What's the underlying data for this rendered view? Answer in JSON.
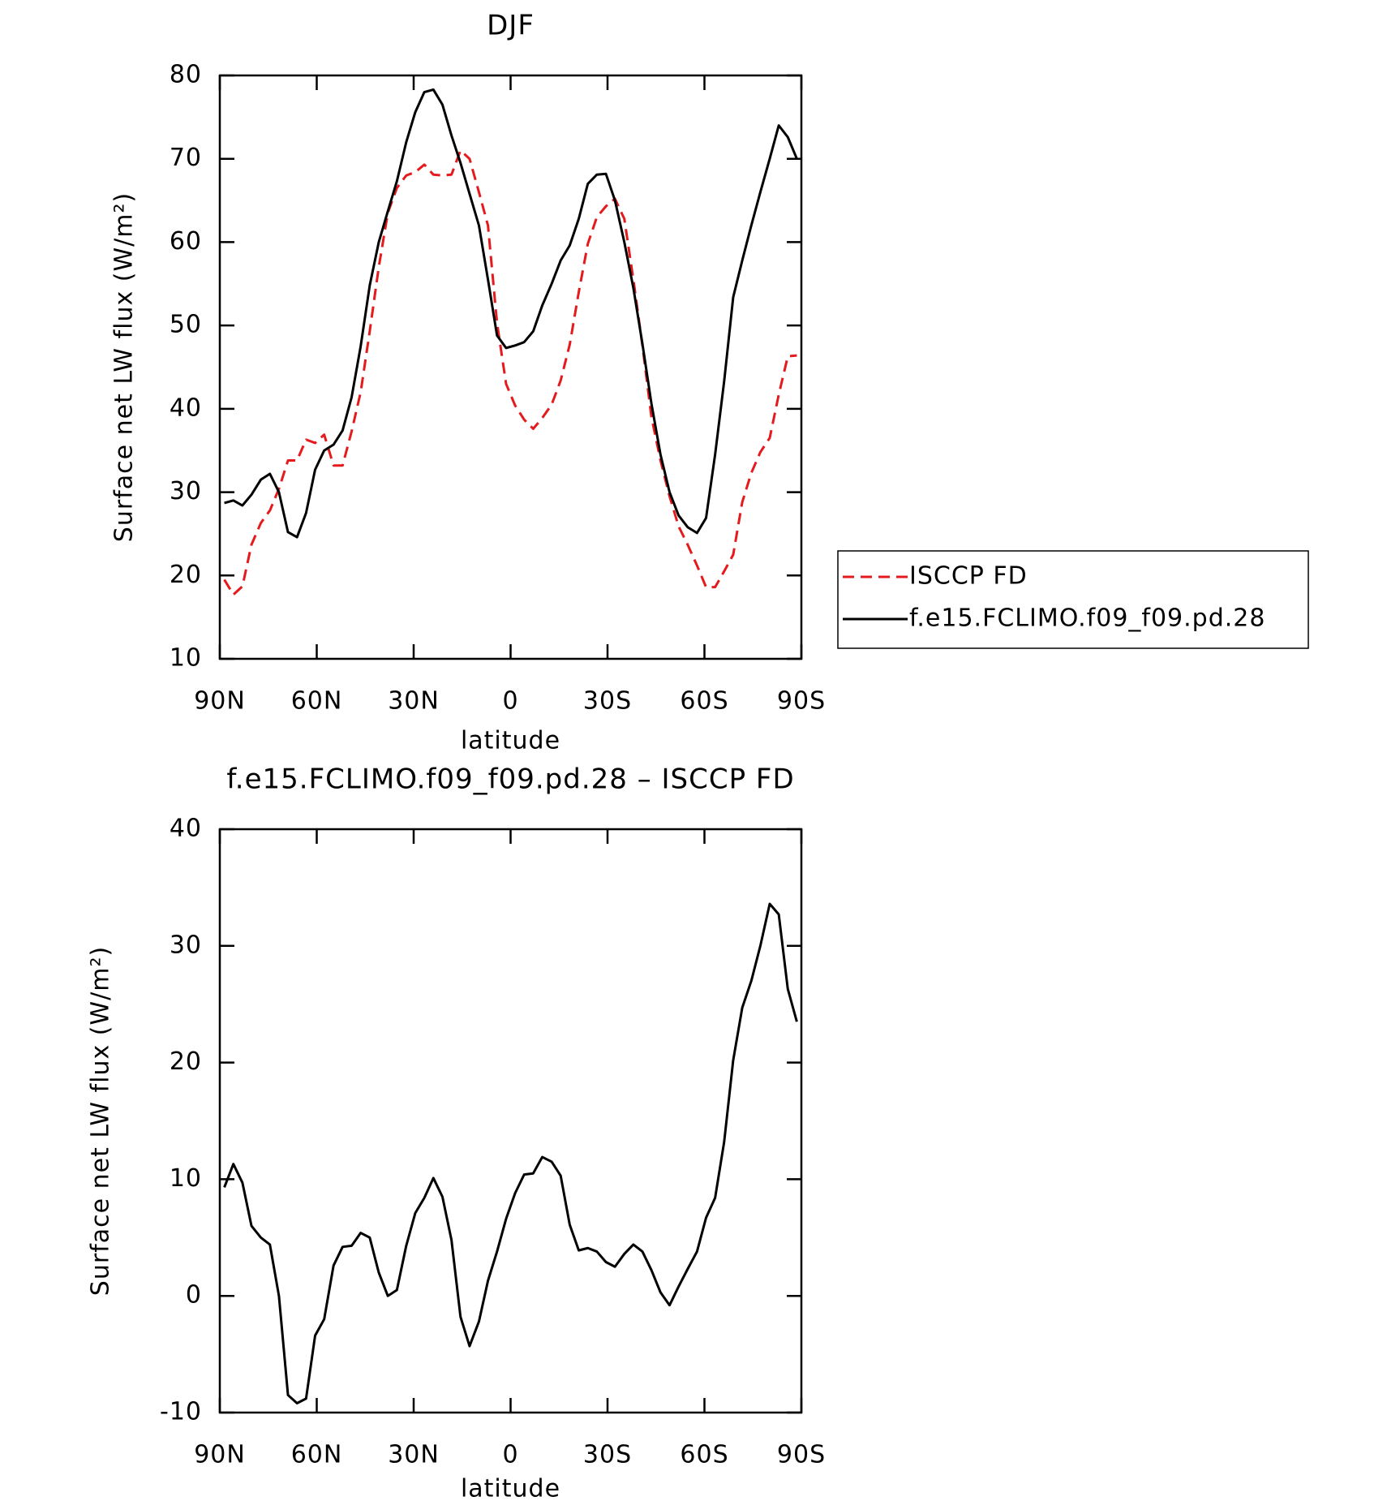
{
  "chart_data": [
    {
      "type": "line",
      "title": "DJF",
      "x_label": "latitude",
      "y_label": "Surface net LW flux (W/m²)",
      "x": [
        88.6,
        85.8,
        83.0,
        80.2,
        77.3,
        74.5,
        71.7,
        68.9,
        66.1,
        63.3,
        60.5,
        57.7,
        54.8,
        52.0,
        49.2,
        46.4,
        43.6,
        40.8,
        38.0,
        35.2,
        32.3,
        29.5,
        26.7,
        23.9,
        21.1,
        18.3,
        15.5,
        12.7,
        9.8,
        7.0,
        4.2,
        1.4,
        -1.4,
        -4.2,
        -7.0,
        -9.8,
        -12.7,
        -15.5,
        -18.3,
        -21.1,
        -23.9,
        -26.7,
        -29.5,
        -32.3,
        -35.2,
        -38.0,
        -40.8,
        -43.6,
        -46.4,
        -49.2,
        -52.0,
        -54.8,
        -57.7,
        -60.5,
        -63.3,
        -66.1,
        -68.9,
        -71.7,
        -74.5,
        -77.3,
        -80.2,
        -83.0,
        -85.8,
        -88.6
      ],
      "series": [
        {
          "name": "ISCCP FD",
          "color": "#e41a1c",
          "style": "dashed",
          "values": [
            19.5,
            17.7,
            18.7,
            23.7,
            26.3,
            27.8,
            30.4,
            33.8,
            33.8,
            36.3,
            35.9,
            36.9,
            33.2,
            33.2,
            37.3,
            42,
            49.3,
            57,
            63.5,
            66.5,
            68,
            68.4,
            69.3,
            68.1,
            68,
            68.1,
            71,
            70,
            66,
            62,
            50.3,
            43,
            40.4,
            38.7,
            37.6,
            38.9,
            40.5,
            43.4,
            47.7,
            54,
            59.8,
            63,
            64.3,
            65.2,
            62.8,
            55.5,
            47.6,
            39,
            33.8,
            29.5,
            25.9,
            23.7,
            21.2,
            18.6,
            18.6,
            20.5,
            22.5,
            28.8,
            32.3,
            34.8,
            36.5,
            41.7,
            46.3,
            46.4
          ]
        },
        {
          "name": "f.e15.FCLIMO.f09_f09.pd.28",
          "color": "#000000",
          "style": "solid",
          "values": [
            28.7,
            29,
            28.4,
            29.7,
            31.5,
            32.2,
            30,
            25.2,
            24.6,
            27.5,
            32.7,
            35,
            35.7,
            37.4,
            41.4,
            47.5,
            54.8,
            60,
            63.7,
            67.3,
            72,
            75.6,
            78,
            78.3,
            76.5,
            72.8,
            69.5,
            65.8,
            62,
            55.5,
            48.8,
            47.3,
            47.6,
            48,
            49.3,
            52.4,
            55,
            57.8,
            59.6,
            62.8,
            67,
            68.1,
            68.2,
            65,
            60,
            54.5,
            47.8,
            40.6,
            34.5,
            30,
            27.2,
            25.8,
            25.1,
            26.9,
            34.5,
            43.3,
            53.4,
            57.8,
            62,
            66,
            70,
            74,
            72.6,
            70
          ]
        }
      ],
      "xlim": [
        90,
        -90
      ],
      "xticks": [
        {
          "value": 90,
          "label": "90N"
        },
        {
          "value": 60,
          "label": "60N"
        },
        {
          "value": 30,
          "label": "30N"
        },
        0,
        {
          "value": -30,
          "label": "30S"
        },
        {
          "value": -60,
          "label": "60S"
        },
        {
          "value": -90,
          "label": "90S"
        }
      ],
      "ylim": [
        10,
        80
      ],
      "yticks": [
        10,
        20,
        30,
        40,
        50,
        60,
        70,
        80
      ],
      "legend": "right"
    },
    {
      "type": "line",
      "title": "f.e15.FCLIMO.f09_f09.pd.28 – ISCCP FD",
      "x_label": "latitude",
      "y_label": "Surface net LW flux (W/m²)",
      "x": [
        88.6,
        85.8,
        83.0,
        80.2,
        77.3,
        74.5,
        71.7,
        68.9,
        66.1,
        63.3,
        60.5,
        57.7,
        54.8,
        52.0,
        49.2,
        46.4,
        43.6,
        40.8,
        38.0,
        35.2,
        32.3,
        29.5,
        26.7,
        23.9,
        21.1,
        18.3,
        15.5,
        12.7,
        9.8,
        7.0,
        4.2,
        1.4,
        -1.4,
        -4.2,
        -7.0,
        -9.8,
        -12.7,
        -15.5,
        -18.3,
        -21.1,
        -23.9,
        -26.7,
        -29.5,
        -32.3,
        -35.2,
        -38.0,
        -40.8,
        -43.6,
        -46.4,
        -49.2,
        -52.0,
        -54.8,
        -57.7,
        -60.5,
        -63.3,
        -66.1,
        -68.9,
        -71.7,
        -74.5,
        -77.3,
        -80.2,
        -83.0,
        -85.8,
        -88.6
      ],
      "series": [
        {
          "color": "#000000",
          "style": "solid",
          "values": [
            9.3,
            11.3,
            9.7,
            6,
            5,
            4.4,
            0,
            -8.5,
            -9.2,
            -8.8,
            -3.4,
            -2,
            2.6,
            4.2,
            4.3,
            5.4,
            5,
            2,
            0,
            0.5,
            4.3,
            7.1,
            8.4,
            10.1,
            8.5,
            4.8,
            -1.8,
            -4.3,
            -2.2,
            1.3,
            3.8,
            6.6,
            8.8,
            10.4,
            10.5,
            11.9,
            11.5,
            10.3,
            6.1,
            3.9,
            4.1,
            3.8,
            2.9,
            2.5,
            3.6,
            4.4,
            3.8,
            2.2,
            0.3,
            -0.8,
            0.8,
            2.3,
            3.8,
            6.7,
            8.4,
            13.2,
            20.2,
            24.7,
            27,
            30,
            33.6,
            32.7,
            26.3,
            23.5
          ]
        }
      ],
      "xlim": [
        90,
        -90
      ],
      "xticks": [
        {
          "value": 90,
          "label": "90N"
        },
        {
          "value": 60,
          "label": "60N"
        },
        {
          "value": 30,
          "label": "30N"
        },
        0,
        {
          "value": -30,
          "label": "30S"
        },
        {
          "value": -60,
          "label": "60S"
        },
        {
          "value": -90,
          "label": "90S"
        }
      ],
      "ylim": [
        -10,
        40
      ],
      "yticks": [
        -10,
        0,
        10,
        20,
        30,
        40
      ]
    }
  ]
}
